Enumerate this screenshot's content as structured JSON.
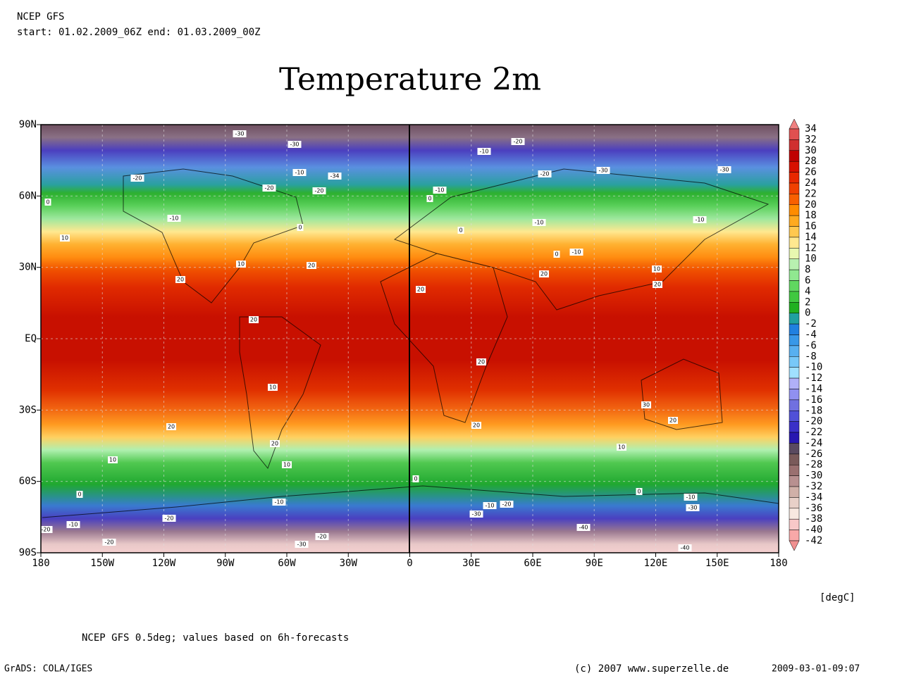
{
  "header": {
    "model": "NCEP GFS",
    "period": "start: 01.02.2009_06Z end: 01.03.2009_00Z"
  },
  "title": "Temperature 2m",
  "map": {
    "lat_labels": [
      "90N",
      "60N",
      "30N",
      "EQ",
      "30S",
      "60S",
      "90S"
    ],
    "lon_labels": [
      "180",
      "150W",
      "120W",
      "90W",
      "60W",
      "30W",
      "0",
      "30E",
      "60E",
      "90E",
      "120E",
      "150E",
      "180"
    ],
    "contour_labels": [
      "-30",
      "-30",
      "-10",
      "-34",
      "-20",
      "-20",
      "-20",
      "0",
      "-10",
      "0",
      "10",
      "20",
      "10",
      "20",
      "20",
      "10",
      "20",
      "20",
      "10",
      "10",
      "0",
      "-10",
      "-20",
      "-10",
      "-20",
      "-20",
      "-30",
      "-20",
      "-20",
      "-10",
      "-20",
      "-30",
      "-30",
      "-10",
      "0",
      "-10",
      "-10",
      "0",
      "0",
      "-10",
      "10",
      "20",
      "20",
      "20",
      "20",
      "30",
      "20",
      "20",
      "10",
      "0",
      "0",
      "-10",
      "-30",
      "-10",
      "-20",
      "-30",
      "-40",
      "-40"
    ]
  },
  "colorbar": {
    "labels": [
      "34",
      "32",
      "30",
      "28",
      "26",
      "24",
      "22",
      "20",
      "18",
      "16",
      "14",
      "12",
      "10",
      "8",
      "6",
      "4",
      "2",
      "0",
      "-2",
      "-4",
      "-6",
      "-8",
      "-10",
      "-12",
      "-14",
      "-16",
      "-18",
      "-20",
      "-22",
      "-24",
      "-26",
      "-28",
      "-30",
      "-32",
      "-34",
      "-36",
      "-38",
      "-40",
      "-42"
    ],
    "colors": [
      "#f08080",
      "#e05050",
      "#d03030",
      "#c00000",
      "#d81000",
      "#e82800",
      "#f04000",
      "#f86000",
      "#ff8c00",
      "#ffaa20",
      "#ffc850",
      "#ffe890",
      "#e8f8b0",
      "#b8f0b0",
      "#90e890",
      "#60d860",
      "#40c840",
      "#20b020",
      "#20a0a0",
      "#2080e0",
      "#3898e8",
      "#58b0f0",
      "#78c8f8",
      "#a0e0ff",
      "#b0b0f8",
      "#9090f0",
      "#7070e0",
      "#5050d8",
      "#3a30c8",
      "#2818b0",
      "#5a4a60",
      "#7a5a5a",
      "#9a7070",
      "#b89090",
      "#d0b0a8",
      "#e8d0c8",
      "#f8e8e0",
      "#f8c8c8",
      "#f8a8a8",
      "#f09090"
    ],
    "unit": "[degC]"
  },
  "footer": {
    "note": "NCEP GFS 0.5deg; values based on 6h-forecasts",
    "software": "GrADS: COLA/IGES",
    "credit": "(c) 2007 www.superzelle.de",
    "timestamp": "2009-03-01-09:07"
  }
}
